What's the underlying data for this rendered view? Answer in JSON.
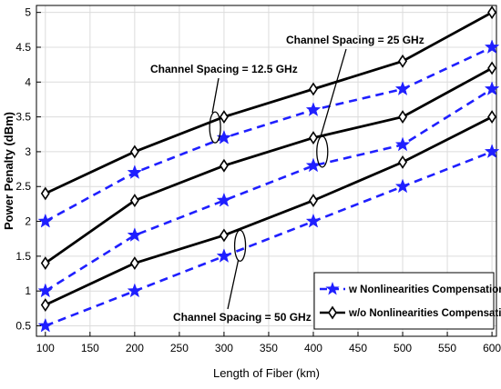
{
  "chart_data": {
    "type": "line",
    "xlabel": "Length of Fiber (km)",
    "ylabel": "Power Penalty (dBm)",
    "xlim": [
      90,
      605
    ],
    "ylim": [
      0.35,
      5.1
    ],
    "x_ticks": [
      100,
      150,
      200,
      250,
      300,
      350,
      400,
      450,
      500,
      550,
      600
    ],
    "y_ticks": [
      0.5,
      1,
      1.5,
      2,
      2.5,
      3,
      3.5,
      4,
      4.5,
      5
    ],
    "grid": true,
    "legend_position": "bottom-right",
    "legend": [
      {
        "label": "w Nonlinearities Compensation",
        "style": "dashed",
        "marker": "star",
        "color": "#1f1fff"
      },
      {
        "label": "w/o Nonlinearities Compensation",
        "style": "solid",
        "marker": "diamond",
        "color": "#000000"
      }
    ],
    "x": [
      100,
      200,
      300,
      400,
      500,
      600
    ],
    "series": [
      {
        "group": "w/o",
        "spacing": "12.5 GHz",
        "values": [
          2.4,
          3.0,
          3.5,
          3.9,
          4.3,
          5.0
        ]
      },
      {
        "group": "w",
        "spacing": "12.5 GHz",
        "values": [
          2.0,
          2.7,
          3.2,
          3.6,
          3.9,
          4.5
        ]
      },
      {
        "group": "w/o",
        "spacing": "25 GHz",
        "values": [
          1.4,
          2.3,
          2.8,
          3.2,
          3.5,
          4.2
        ]
      },
      {
        "group": "w",
        "spacing": "25 GHz",
        "values": [
          1.0,
          1.8,
          2.3,
          2.8,
          3.1,
          3.9
        ]
      },
      {
        "group": "w/o",
        "spacing": "50 GHz",
        "values": [
          0.8,
          1.4,
          1.8,
          2.3,
          2.85,
          3.5
        ]
      },
      {
        "group": "w",
        "spacing": "50 GHz",
        "values": [
          0.5,
          1.0,
          1.5,
          2.0,
          2.5,
          3.0
        ]
      }
    ],
    "annotations": [
      {
        "text": "Channel Spacing = 12.5 GHz",
        "target_x": 290,
        "target_y": 3.35
      },
      {
        "text": "Channel Spacing = 25 GHz",
        "target_x": 410,
        "target_y": 3.0
      },
      {
        "text": "Channel Spacing = 50 GHz",
        "target_x": 318,
        "target_y": 1.65
      }
    ],
    "colors": {
      "w": "#1f1fff",
      "wo": "#000000"
    }
  }
}
